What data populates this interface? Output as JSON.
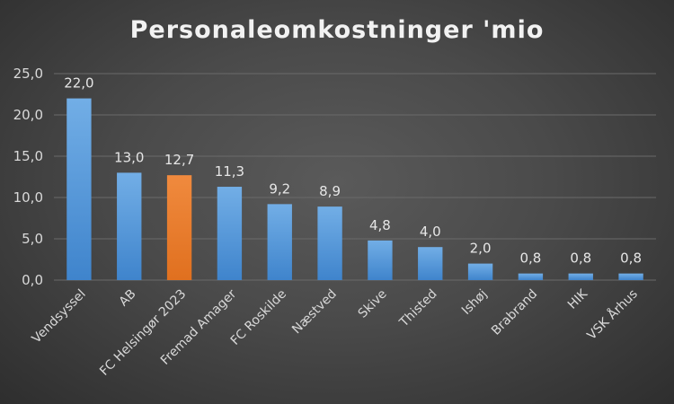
{
  "chart_data": {
    "type": "bar",
    "title": "Personaleomkostninger 'mio",
    "xlabel": "",
    "ylabel": "",
    "categories": [
      "Vendsyssel",
      "AB",
      "FC Helsingør 2023",
      "Fremad Amager",
      "FC Roskilde",
      "Næstved",
      "Skive",
      "Thisted",
      "Ishøj",
      "Brabrand",
      "HIK",
      "VSK Århus"
    ],
    "values": [
      22.0,
      13.0,
      12.7,
      11.3,
      9.2,
      8.9,
      4.8,
      4.0,
      2.0,
      0.8,
      0.8,
      0.8
    ],
    "value_labels": [
      "22,0",
      "13,0",
      "12,7",
      "11,3",
      "9,2",
      "8,9",
      "4,8",
      "4,0",
      "2,0",
      "0,8",
      "0,8",
      "0,8"
    ],
    "highlight_index": 2,
    "ylim": [
      0,
      25
    ],
    "yticks": [
      0,
      5,
      10,
      15,
      20,
      25
    ],
    "ytick_labels": [
      "0,0",
      "5,0",
      "10,0",
      "15,0",
      "20,0",
      "25,0"
    ],
    "grid": true,
    "legend": "none",
    "colors": {
      "bar": "#5b9bd5",
      "highlight": "#ed7d31"
    }
  }
}
